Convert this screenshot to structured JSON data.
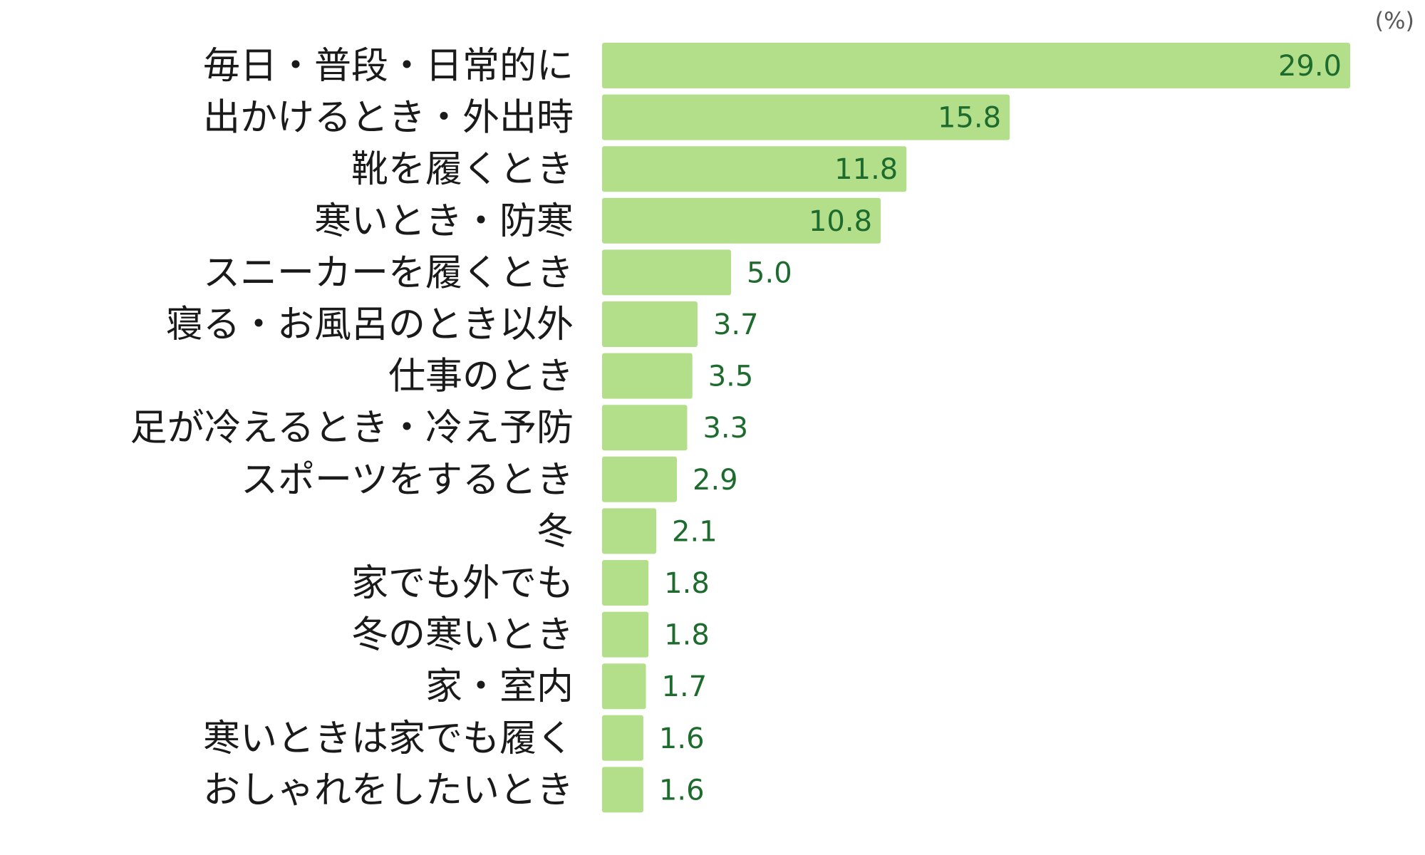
{
  "chart_data": {
    "type": "bar",
    "orientation": "horizontal",
    "unit_label": "(%)",
    "categories": [
      "毎日・普段・日常的に",
      "出かけるとき・外出時",
      "靴を履くとき",
      "寒いとき・防寒",
      "スニーカーを履くとき",
      "寝る・お風呂のとき以外",
      "仕事のとき",
      "足が冷えるとき・冷え予防",
      "スポーツをするとき",
      "冬",
      "家でも外でも",
      "冬の寒いとき",
      "家・室内",
      "寒いときは家でも履く",
      "おしゃれをしたいとき"
    ],
    "values": [
      29.0,
      15.8,
      11.8,
      10.8,
      5.0,
      3.7,
      3.5,
      3.3,
      2.9,
      2.1,
      1.8,
      1.8,
      1.7,
      1.6,
      1.6
    ],
    "value_labels": [
      "29.0",
      "15.8",
      "11.8",
      "10.8",
      "5.0",
      "3.7",
      "3.5",
      "3.3",
      "2.9",
      "2.1",
      "1.8",
      "1.8",
      "1.7",
      "1.6",
      "1.6"
    ],
    "xlim": [
      0,
      29.0
    ],
    "grid": false,
    "legend": "none",
    "bar_color": "#b3df8a",
    "value_label_color": "#1e6b2e",
    "value_label_inside_color": "#1e6b2e"
  }
}
